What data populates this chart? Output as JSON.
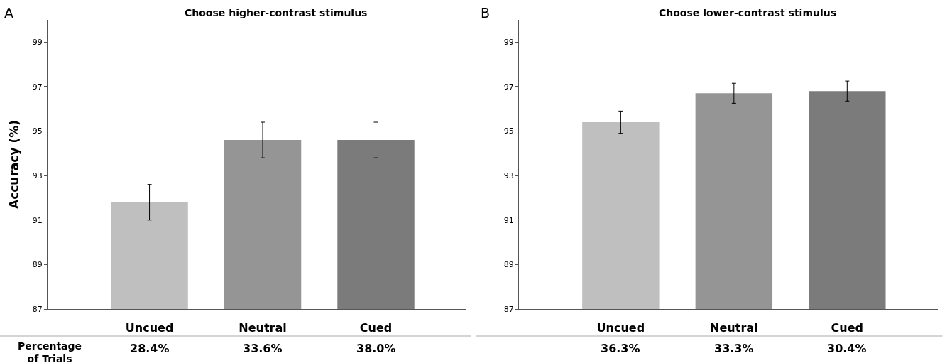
{
  "chart_data": [
    {
      "type": "bar",
      "title": "Choose higher-contrast stimulus",
      "ylabel": "Accuracy (%)",
      "categories": [
        "Uncued",
        "Neutral",
        "Cued"
      ],
      "values": [
        91.8,
        94.6,
        94.6
      ],
      "errors": [
        0.8,
        0.8,
        0.8
      ],
      "colors": [
        "#bfbfbf",
        "#959595",
        "#7b7b7b"
      ],
      "ylim": [
        87,
        100
      ],
      "yticks": [
        87,
        89,
        91,
        93,
        95,
        97,
        99
      ],
      "annotations": [
        "A",
        "Percentage\nof Trials",
        "28.4%",
        "33.6%",
        "38.0%"
      ]
    },
    {
      "type": "bar",
      "title": "Choose lower-contrast stimulus",
      "categories": [
        "Uncued",
        "Neutral",
        "Cued"
      ],
      "values": [
        95.4,
        96.7,
        96.8
      ],
      "errors": [
        0.5,
        0.45,
        0.45
      ],
      "colors": [
        "#bfbfbf",
        "#959595",
        "#7b7b7b"
      ],
      "ylim": [
        87,
        100
      ],
      "yticks": [
        87,
        89,
        91,
        93,
        95,
        97,
        99
      ],
      "annotations": [
        "B",
        "36.3%",
        "33.3%",
        "30.4%"
      ]
    }
  ]
}
